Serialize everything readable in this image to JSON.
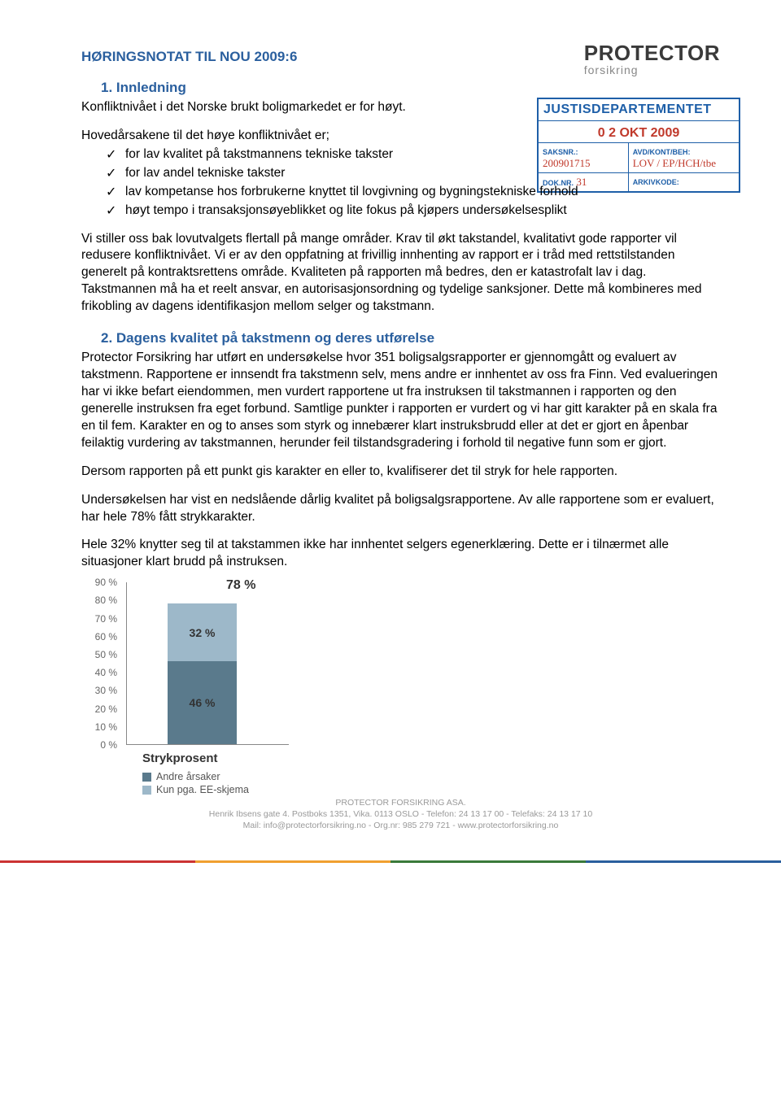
{
  "logo": {
    "main": "PROTECTOR",
    "sub": "forsikring"
  },
  "stamp": {
    "dept": "JUSTISDEPARTEMENTET",
    "date": "0 2 OKT 2009",
    "saksnr_label": "SAKSNR.:",
    "saksnr_value": "200901715",
    "avd_label": "AVD/KONT/BEH:",
    "avd_value": "LOV / EP/HCH/tbe",
    "doknr_label": "DOK.NR.",
    "doknr_value": "31",
    "arkiv_label": "ARKIVKODE:"
  },
  "doc_title": "HØRINGSNOTAT TIL NOU 2009:6",
  "section1_title": "1. Innledning",
  "p1": "Konfliktnivået i det Norske brukt boligmarkedet er for høyt.",
  "p2_intro": "Hovedårsakene til det høye konfliktnivået er;",
  "bullets": [
    "for lav kvalitet på takstmannens tekniske takster",
    "for lav andel tekniske takster",
    "lav kompetanse hos forbrukerne knyttet til lovgivning og bygningstekniske forhold",
    "høyt tempo i transaksjonsøyeblikket og lite fokus på kjøpers undersøkelsesplikt"
  ],
  "p3": "Vi stiller oss bak lovutvalgets flertall på mange områder. Krav til økt takstandel, kvalitativt gode rapporter vil redusere konfliktnivået. Vi er av den oppfatning at frivillig innhenting av rapport er i tråd med rettstilstanden generelt på kontraktsrettens område. Kvaliteten på rapporten må bedres, den er katastrofalt lav i dag. Takstmannen må ha et reelt ansvar, en autorisasjonsordning og tydelige sanksjoner. Dette må kombineres med frikobling av dagens identifikasjon mellom selger og takstmann.",
  "section2_title": "2. Dagens kvalitet på takstmenn og deres utførelse",
  "p4": "Protector Forsikring har utført en undersøkelse hvor 351 boligsalgsrapporter er gjennomgått og evaluert av takstmenn. Rapportene er innsendt fra takstmenn selv, mens andre er innhentet av oss fra Finn. Ved evalueringen har vi ikke befart eiendommen, men vurdert rapportene ut fra instruksen til takstmannen i rapporten og den generelle instruksen fra eget forbund. Samtlige punkter i rapporten er vurdert og vi har gitt karakter på en skala fra en til fem. Karakter en og to anses som styrk og innebærer klart instruksbrudd eller at det er gjort en åpenbar feilaktig vurdering av takstmannen, herunder feil tilstandsgradering i forhold til negative funn som er gjort.",
  "p5": "Dersom rapporten på ett punkt gis karakter en eller to, kvalifiserer det til stryk for hele rapporten.",
  "p6": "Undersøkelsen har vist en nedslående dårlig kvalitet på boligsalgsrapportene. Av alle rapportene som er evaluert, har hele 78% fått strykkarakter.",
  "p7": "Hele 32% knytter seg til at takstammen ikke har innhentet selgers egenerklæring. Dette er i tilnærmet alle situasjoner klart brudd på instruksen.",
  "chart": {
    "type": "stacked-bar",
    "ymax": 90,
    "yticks": [
      "90 %",
      "80 %",
      "70 %",
      "60 %",
      "50 %",
      "40 %",
      "30 %",
      "20 %",
      "10 %",
      "0 %"
    ],
    "total_label": "78 %",
    "segments": [
      {
        "label": "32 %",
        "value": 32,
        "color": "#9db8c9"
      },
      {
        "label": "46 %",
        "value": 46,
        "color": "#5a7a8c"
      }
    ],
    "x_title": "Strykprosent",
    "legend": [
      {
        "label": "Andre årsaker",
        "color": "#5a7a8c"
      },
      {
        "label": "Kun pga. EE-skjema",
        "color": "#9db8c9"
      }
    ],
    "plot_bg": "#ffffff",
    "axis_color": "#888888"
  },
  "footer": {
    "line1": "PROTECTOR FORSIKRING ASA.",
    "line2": "Henrik Ibsens gate 4. Postboks 1351, Vika. 0113 OSLO - Telefon: 24 13 17 00 - Telefaks: 24 13 17 10",
    "line3": "Mail: info@protectorforsikring.no - Org.nr: 985 279 721 - www.protectorforsikring.no",
    "colors": [
      "#cc3333",
      "#f0a030",
      "#3a7a3a",
      "#2a5f9e"
    ]
  }
}
